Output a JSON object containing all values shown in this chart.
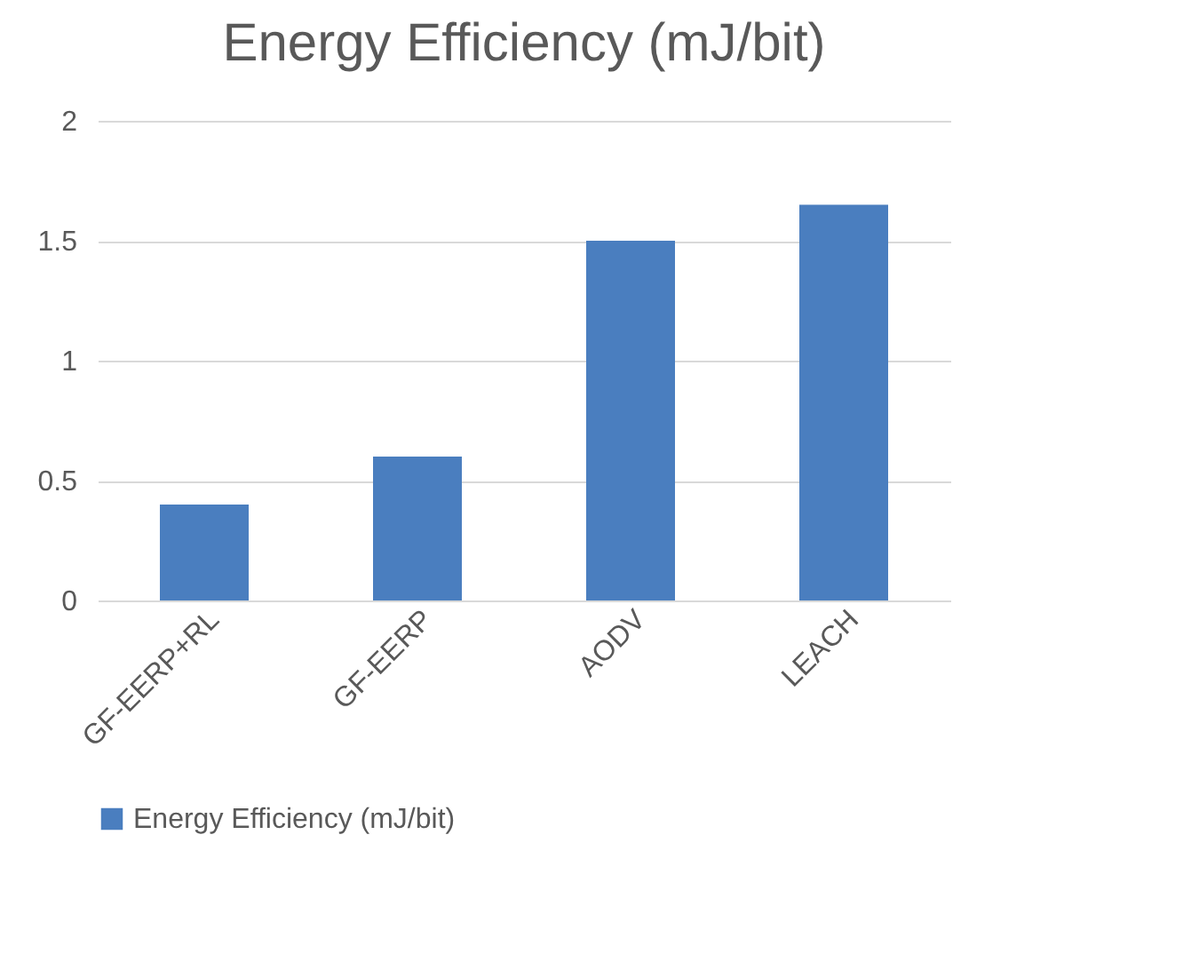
{
  "chart_data": {
    "type": "bar",
    "title": "Energy Efficiency (mJ/bit)",
    "categories": [
      "GF-EERP+RL",
      "GF-EERP",
      "AODV",
      "LEACH"
    ],
    "series": [
      {
        "name": "Energy Efficiency (mJ/bit)",
        "color": "#4a7ebf",
        "values": [
          0.4,
          0.6,
          1.5,
          1.65
        ]
      }
    ],
    "ylim": [
      0,
      2
    ],
    "yticks": [
      0,
      0.5,
      1,
      1.5,
      2
    ],
    "grid": "y",
    "legend": "bottom"
  }
}
